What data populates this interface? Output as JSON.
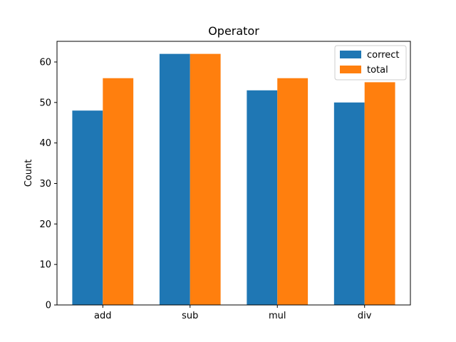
{
  "chart_data": {
    "type": "bar",
    "title": "Operator",
    "xlabel": "",
    "ylabel": "Count",
    "categories": [
      "add",
      "sub",
      "mul",
      "div"
    ],
    "series": [
      {
        "name": "correct",
        "values": [
          48,
          62,
          53,
          50
        ],
        "color": "#1f77b4"
      },
      {
        "name": "total",
        "values": [
          56,
          62,
          56,
          55
        ],
        "color": "#ff7f0e"
      }
    ],
    "ylim": [
      0,
      65.1
    ],
    "yticks": [
      0,
      10,
      20,
      30,
      40,
      50,
      60
    ],
    "grid": false,
    "legend_position": "top-right"
  }
}
